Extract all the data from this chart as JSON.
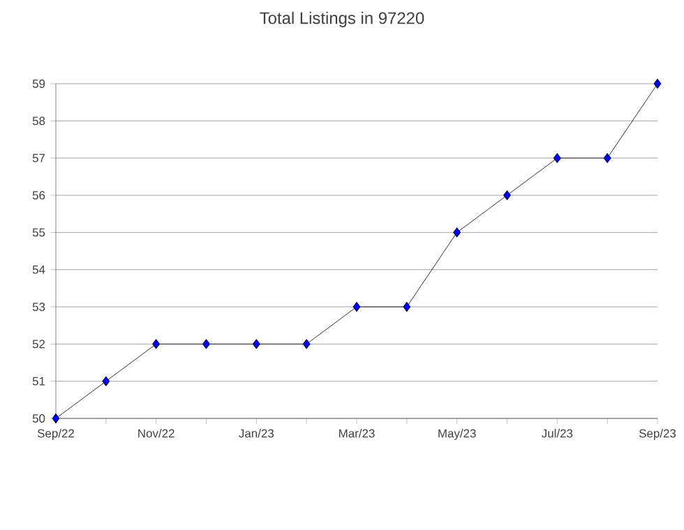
{
  "chart_data": {
    "type": "line",
    "title": "Total Listings in 97220",
    "categories": [
      "Sep/22",
      null,
      "Nov/22",
      null,
      "Jan/23",
      null,
      "Mar/23",
      null,
      "May/23",
      null,
      "Jul/23",
      null,
      "Sep/23"
    ],
    "series": [
      {
        "color": "#0000ff",
        "values": [
          50,
          51,
          52,
          52,
          52,
          52,
          53,
          53,
          55,
          56,
          57,
          57,
          59
        ]
      }
    ],
    "ylim": [
      50,
      59
    ],
    "yticks": [
      50,
      51,
      52,
      53,
      54,
      55,
      56,
      57,
      58,
      59
    ],
    "grid": "y",
    "marker": "diamond",
    "line_style": "solid"
  }
}
